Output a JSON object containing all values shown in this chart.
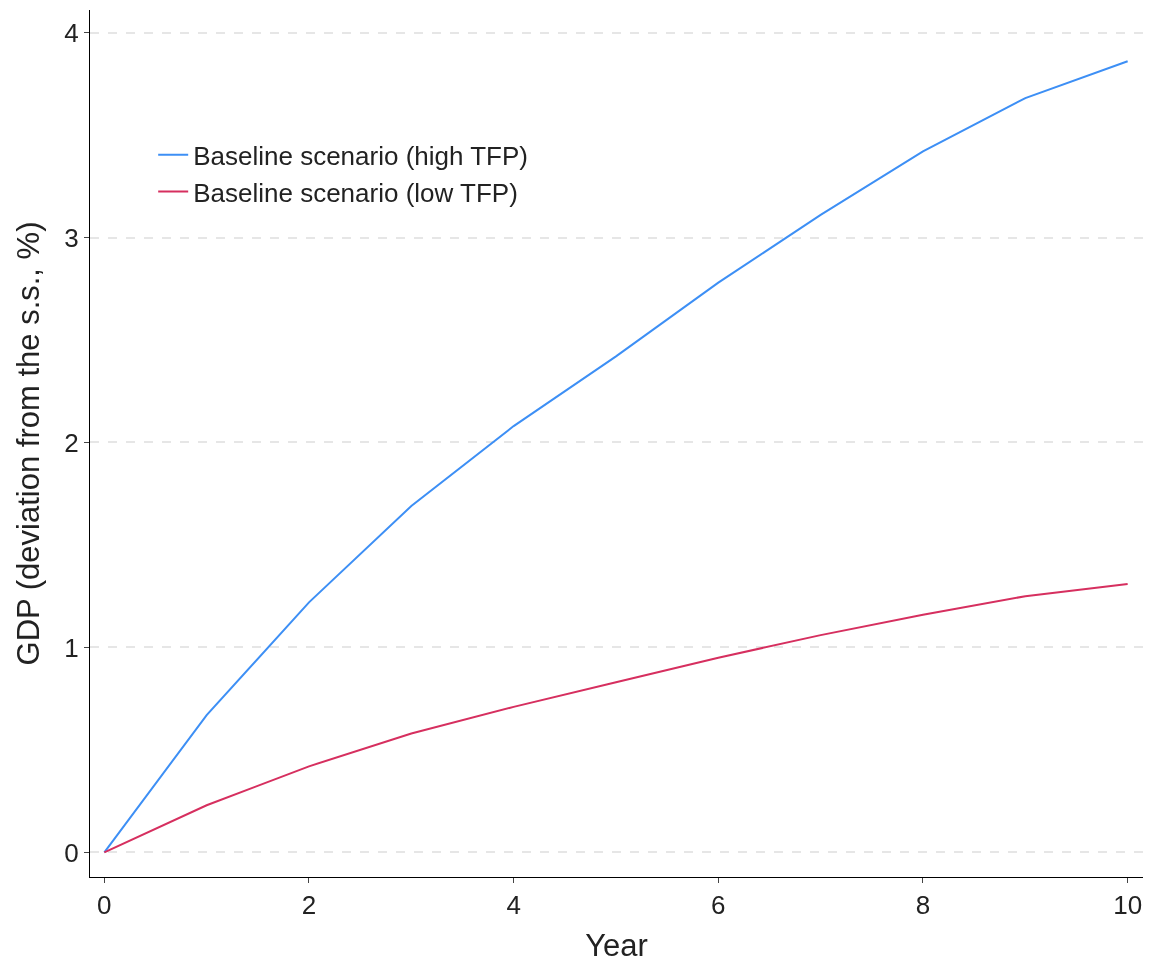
{
  "chart_data": {
    "type": "line",
    "xlabel": "Year",
    "ylabel": "GDP (deviation from the s.s., %)",
    "x": [
      0,
      1,
      2,
      3,
      4,
      5,
      6,
      7,
      8,
      9,
      10
    ],
    "series": [
      {
        "name": "Baseline scenario (high TFP)",
        "color": "#3d8ff5",
        "values": [
          0,
          0.67,
          1.22,
          1.69,
          2.08,
          2.42,
          2.78,
          3.11,
          3.42,
          3.68,
          3.86
        ]
      },
      {
        "name": "Baseline scenario (low TFP)",
        "color": "#d62f5f",
        "values": [
          0,
          0.23,
          0.42,
          0.58,
          0.71,
          0.83,
          0.95,
          1.06,
          1.16,
          1.25,
          1.31
        ]
      }
    ],
    "xlim": [
      -0.14,
      10.15
    ],
    "ylim": [
      -0.12,
      4.11
    ],
    "xticks": [
      0,
      2,
      4,
      6,
      8,
      10
    ],
    "yticks": [
      0,
      1,
      2,
      3,
      4
    ],
    "grid": "y",
    "legend": "top left",
    "marker": "none",
    "line_style": "solid"
  }
}
